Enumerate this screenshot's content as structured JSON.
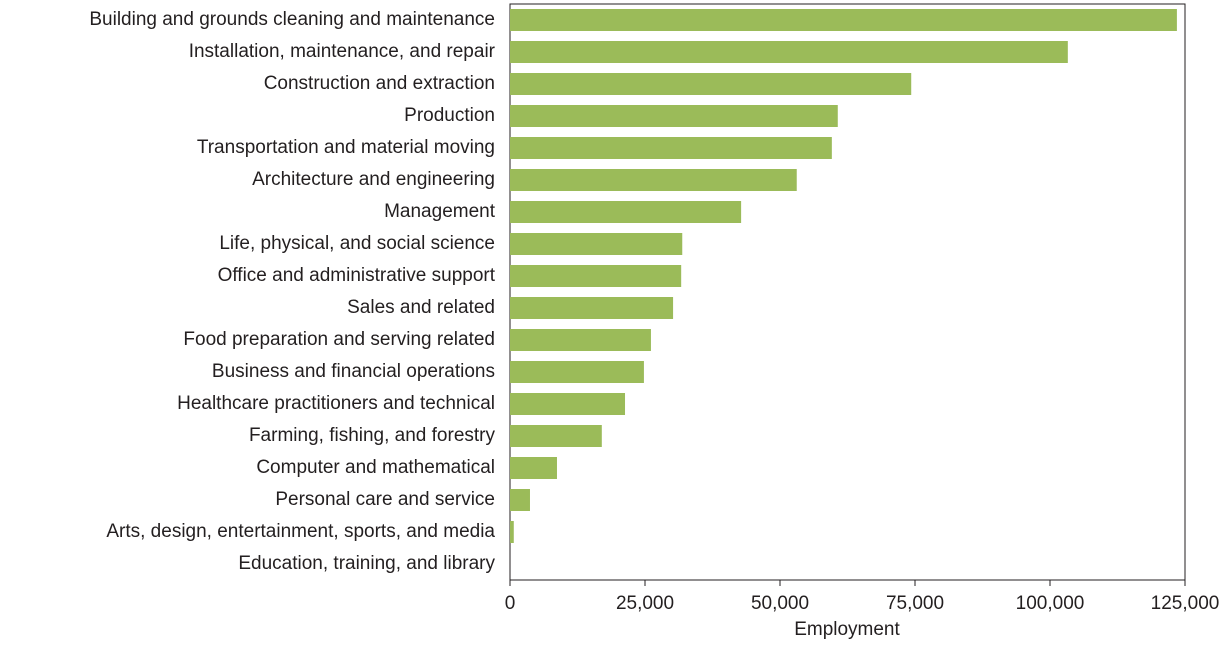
{
  "chart_data": {
    "type": "hbar",
    "categories": [
      "Building and grounds cleaning and maintenance",
      "Installation, maintenance, and repair",
      "Construction and extraction",
      "Production",
      "Transportation and material moving",
      "Architecture and engineering",
      "Management",
      "Life, physical, and social science",
      "Office and administrative support",
      "Sales and related",
      "Food preparation and serving related",
      "Business and financial operations",
      "Healthcare practitioners and technical",
      "Farming, fishing, and forestry",
      "Computer and mathematical",
      "Personal care and service",
      "Arts, design, entertainment, sports, and media",
      "Education, training, and library"
    ],
    "values": [
      123500,
      103300,
      74300,
      60700,
      59600,
      53100,
      42800,
      31900,
      31700,
      30200,
      26100,
      24800,
      21300,
      17000,
      8700,
      3700,
      700,
      0
    ],
    "color": "#9bbb59",
    "xlabel": "Employment",
    "xlim": [
      0,
      125000
    ],
    "xticks": [
      0,
      {
        "value": 25000,
        "label": "25,000"
      },
      {
        "value": 50000,
        "label": "50,000"
      },
      {
        "value": 75000,
        "label": "75,000"
      },
      {
        "value": 100000,
        "label": "100,000"
      },
      {
        "value": 125000,
        "label": "125,000"
      }
    ],
    "grid": false
  }
}
